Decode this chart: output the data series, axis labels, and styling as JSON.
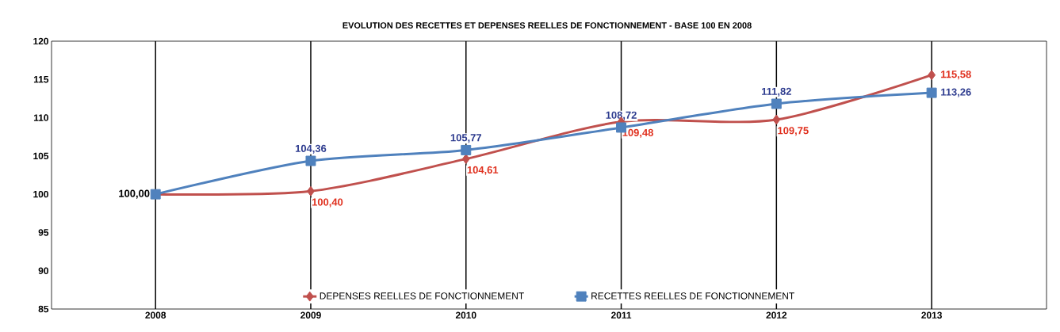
{
  "chart_data": {
    "type": "line",
    "title": "EVOLUTION DES RECETTES ET DEPENSES REELLES DE FONCTIONNEMENT - BASE 100 EN 2008",
    "categories": [
      "2008",
      "2009",
      "2010",
      "2011",
      "2012",
      "2013"
    ],
    "series": [
      {
        "name": "DEPENSES REELLES DE FONCTIONNEMENT",
        "color": "#c0504d",
        "marker": "diamond",
        "values": [
          100.0,
          100.4,
          104.61,
          109.48,
          109.75,
          115.58
        ],
        "value_labels": [
          "100,00",
          "100,40",
          "104,61",
          "109,48",
          "109,75",
          "115,58"
        ]
      },
      {
        "name": "RECETTES REELLES DE FONCTIONNEMENT",
        "color": "#4f81bd",
        "marker": "square",
        "values": [
          100.0,
          104.36,
          105.77,
          108.72,
          111.82,
          113.26
        ],
        "value_labels": [
          null,
          "104,36",
          "105,77",
          "108,72",
          "111,82",
          "113,26"
        ]
      }
    ],
    "ylim": [
      85,
      120
    ],
    "yticks": [
      85,
      90,
      95,
      100,
      105,
      110,
      115,
      120
    ],
    "grid": "x",
    "legend": "bottom"
  }
}
